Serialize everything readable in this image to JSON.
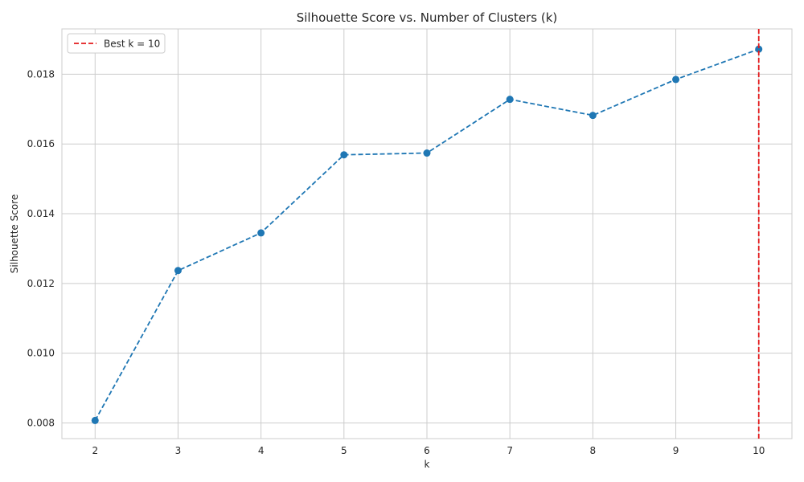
{
  "chart_data": {
    "type": "line",
    "title": "Silhouette Score vs. Number of Clusters (k)",
    "xlabel": "k",
    "ylabel": "Silhouette Score",
    "x": [
      2,
      3,
      4,
      5,
      6,
      7,
      8,
      9,
      10
    ],
    "x_ticks": [
      "2",
      "3",
      "4",
      "5",
      "6",
      "7",
      "8",
      "9",
      "10"
    ],
    "y_ticks": [
      "0.008",
      "0.010",
      "0.012",
      "0.014",
      "0.016",
      "0.018"
    ],
    "y_tick_values": [
      0.008,
      0.01,
      0.012,
      0.014,
      0.016,
      0.018
    ],
    "xlim": [
      1.6,
      10.4
    ],
    "ylim": [
      0.00755,
      0.0193
    ],
    "grid": true,
    "legend_position": "top-left",
    "series": [
      {
        "values": [
          0.00807,
          0.01237,
          0.01345,
          0.01569,
          0.01574,
          0.01728,
          0.01682,
          0.01785,
          0.01872
        ],
        "color": "#1f77b4",
        "line_style": "dashed",
        "marker": "circle"
      }
    ],
    "reference_lines": [
      {
        "type": "vertical",
        "x": 10,
        "label": "Best k = 10",
        "color": "#e31a1c",
        "line_style": "dashed"
      }
    ]
  }
}
